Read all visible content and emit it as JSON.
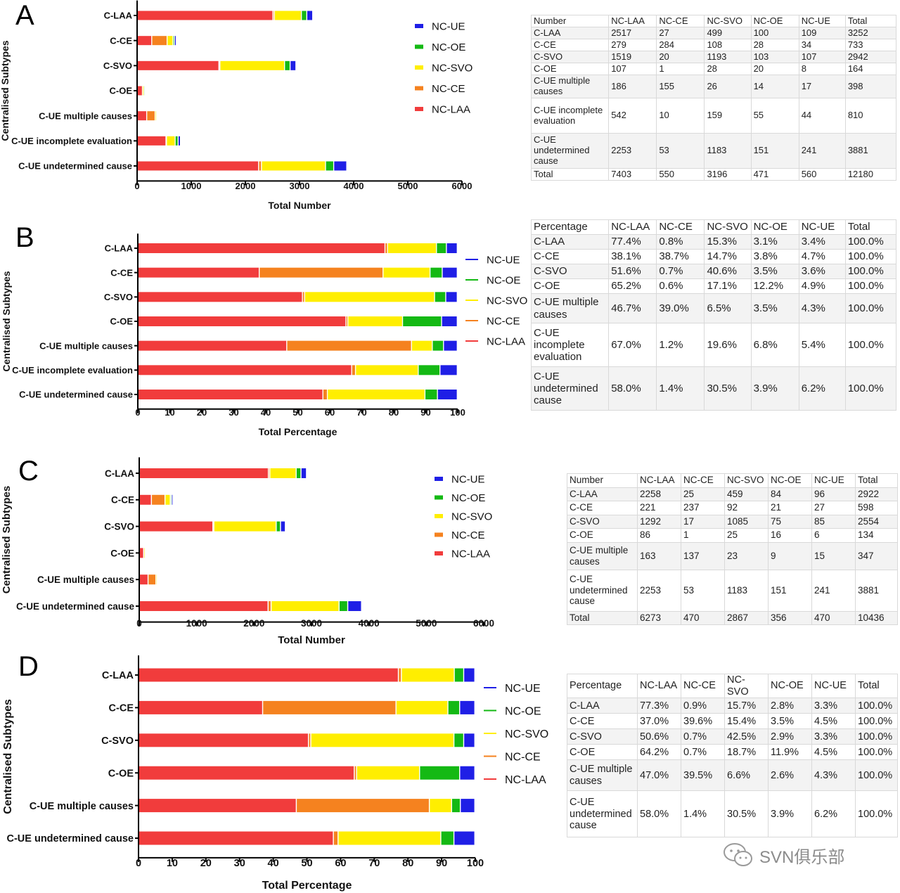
{
  "colors": {
    "NC-LAA": "#f13c3c",
    "NC-CE": "#f5821f",
    "NC-SVO": "#ffee00",
    "NC-OE": "#14b914",
    "NC-UE": "#1f1fe6"
  },
  "panels": [
    {
      "letter": "A",
      "chart_data": {
        "type": "bar",
        "orientation": "horizontal",
        "stacked": true,
        "categories": [
          "C-LAA",
          "C-CE",
          "C-SVO",
          "C-OE",
          "C-UE multiple causes",
          "C-UE incomplete evaluation",
          "C-UE undetermined cause"
        ],
        "series": [
          {
            "name": "NC-LAA",
            "values": [
              2517,
              279,
              1519,
              107,
              186,
              542,
              2253
            ]
          },
          {
            "name": "NC-CE",
            "values": [
              27,
              284,
              20,
              1,
              155,
              10,
              53
            ]
          },
          {
            "name": "NC-SVO",
            "values": [
              499,
              108,
              1193,
              28,
              26,
              159,
              1183
            ]
          },
          {
            "name": "NC-OE",
            "values": [
              100,
              28,
              103,
              20,
              14,
              55,
              151
            ]
          },
          {
            "name": "NC-UE",
            "values": [
              109,
              34,
              107,
              8,
              17,
              44,
              241
            ]
          }
        ],
        "xlabel": "Total Number",
        "ylabel": "Centralised  Subtypes",
        "xlim": [
          0,
          6000
        ],
        "xticks": [
          "0",
          "1000",
          "2000",
          "3000",
          "4000",
          "5000",
          "6000"
        ],
        "legend": [
          "NC-UE",
          "NC-OE",
          "NC-SVO",
          "NC-CE",
          "NC-LAA"
        ]
      },
      "table": {
        "rows": [
          [
            "Number",
            "NC-LAA",
            "NC-CE",
            "NC-SVO",
            "NC-OE",
            "NC-UE",
            "Total"
          ],
          [
            "C-LAA",
            "2517",
            "27",
            "499",
            "100",
            "109",
            "3252"
          ],
          [
            "C-CE",
            "279",
            "284",
            "108",
            "28",
            "34",
            "733"
          ],
          [
            "C-SVO",
            "1519",
            "20",
            "1193",
            "103",
            "107",
            "2942"
          ],
          [
            "C-OE",
            "107",
            "1",
            "28",
            "20",
            "8",
            "164"
          ],
          [
            "C-UE multiple causes",
            "186",
            "155",
            "26",
            "14",
            "17",
            "398"
          ],
          [
            "C-UE incomplete evaluation",
            "542",
            "10",
            "159",
            "55",
            "44",
            "810"
          ],
          [
            "C-UE undetermined cause",
            "2253",
            "53",
            "1183",
            "151",
            "241",
            "3881"
          ],
          [
            "Total",
            "7403",
            "550",
            "3196",
            "471",
            "560",
            "12180"
          ]
        ]
      }
    },
    {
      "letter": "B",
      "chart_data": {
        "type": "bar",
        "orientation": "horizontal",
        "stacked": true,
        "categories": [
          "C-LAA",
          "C-CE",
          "C-SVO",
          "C-OE",
          "C-UE multiple causes",
          "C-UE incomplete evaluation",
          "C-UE undetermined cause"
        ],
        "series": [
          {
            "name": "NC-LAA",
            "values": [
              77.4,
              38.1,
              51.6,
              65.2,
              46.7,
              67.0,
              58.0
            ]
          },
          {
            "name": "NC-CE",
            "values": [
              0.8,
              38.7,
              0.7,
              0.6,
              39.0,
              1.2,
              1.4
            ]
          },
          {
            "name": "NC-SVO",
            "values": [
              15.3,
              14.7,
              40.6,
              17.1,
              6.5,
              19.6,
              30.5
            ]
          },
          {
            "name": "NC-OE",
            "values": [
              3.1,
              3.8,
              3.5,
              12.2,
              3.5,
              6.8,
              3.9
            ]
          },
          {
            "name": "NC-UE",
            "values": [
              3.4,
              4.7,
              3.6,
              4.9,
              4.3,
              5.4,
              6.2
            ]
          }
        ],
        "xlabel": "Total Percentage",
        "ylabel": "Centralised  Subtypes",
        "xlim": [
          0,
          100
        ],
        "xticks": [
          "0",
          "10",
          "20",
          "30",
          "40",
          "50",
          "60",
          "70",
          "80",
          "90",
          "100"
        ],
        "legend": [
          "NC-UE",
          "NC-OE",
          "NC-SVO",
          "NC-CE",
          "NC-LAA"
        ]
      },
      "table": {
        "rows": [
          [
            "Percentage",
            "NC-LAA",
            "NC-CE",
            "NC-SVO",
            "NC-OE",
            "NC-UE",
            "Total"
          ],
          [
            "C-LAA",
            "77.4%",
            "0.8%",
            "15.3%",
            "3.1%",
            "3.4%",
            "100.0%"
          ],
          [
            "C-CE",
            "38.1%",
            "38.7%",
            "14.7%",
            "3.8%",
            "4.7%",
            "100.0%"
          ],
          [
            "C-SVO",
            "51.6%",
            "0.7%",
            "40.6%",
            "3.5%",
            "3.6%",
            "100.0%"
          ],
          [
            "C-OE",
            "65.2%",
            "0.6%",
            "17.1%",
            "12.2%",
            "4.9%",
            "100.0%"
          ],
          [
            "C-UE multiple causes",
            "46.7%",
            "39.0%",
            "6.5%",
            "3.5%",
            "4.3%",
            "100.0%"
          ],
          [
            "C-UE incomplete evaluation",
            "67.0%",
            "1.2%",
            "19.6%",
            "6.8%",
            "5.4%",
            "100.0%"
          ],
          [
            "C-UE undetermined cause",
            "58.0%",
            "1.4%",
            "30.5%",
            "3.9%",
            "6.2%",
            "100.0%"
          ]
        ]
      }
    },
    {
      "letter": "C",
      "chart_data": {
        "type": "bar",
        "orientation": "horizontal",
        "stacked": true,
        "categories": [
          "C-LAA",
          "C-CE",
          "C-SVO",
          "C-OE",
          "C-UE multiple causes",
          "C-UE undetermined cause"
        ],
        "series": [
          {
            "name": "NC-LAA",
            "values": [
              2258,
              221,
              1292,
              86,
              163,
              2253
            ]
          },
          {
            "name": "NC-CE",
            "values": [
              25,
              237,
              17,
              1,
              137,
              53
            ]
          },
          {
            "name": "NC-SVO",
            "values": [
              459,
              92,
              1085,
              25,
              23,
              1183
            ]
          },
          {
            "name": "NC-OE",
            "values": [
              84,
              21,
              75,
              16,
              9,
              151
            ]
          },
          {
            "name": "NC-UE",
            "values": [
              96,
              27,
              85,
              6,
              15,
              241
            ]
          }
        ],
        "xlabel": "Total Number",
        "ylabel": "Centralised Subtypes",
        "xlim": [
          0,
          6000
        ],
        "xticks": [
          "0",
          "1000",
          "2000",
          "3000",
          "4000",
          "5000",
          "6000"
        ],
        "legend": [
          "NC-UE",
          "NC-OE",
          "NC-SVO",
          "NC-CE",
          "NC-LAA"
        ]
      },
      "table": {
        "rows": [
          [
            "Number",
            "NC-LAA",
            "NC-CE",
            "NC-SVO",
            "NC-OE",
            "NC-UE",
            "Total"
          ],
          [
            "C-LAA",
            "2258",
            "25",
            "459",
            "84",
            "96",
            "2922"
          ],
          [
            "C-CE",
            "221",
            "237",
            "92",
            "21",
            "27",
            "598"
          ],
          [
            "C-SVO",
            "1292",
            "17",
            "1085",
            "75",
            "85",
            "2554"
          ],
          [
            "C-OE",
            "86",
            "1",
            "25",
            "16",
            "6",
            "134"
          ],
          [
            "C-UE multiple causes",
            "163",
            "137",
            "23",
            "9",
            "15",
            "347"
          ],
          [
            "C-UE undetermined cause",
            "2253",
            "53",
            "1183",
            "151",
            "241",
            "3881"
          ],
          [
            "Total",
            "6273",
            "470",
            "2867",
            "356",
            "470",
            "10436"
          ]
        ]
      }
    },
    {
      "letter": "D",
      "chart_data": {
        "type": "bar",
        "orientation": "horizontal",
        "stacked": true,
        "categories": [
          "C-LAA",
          "C-CE",
          "C-SVO",
          "C-OE",
          "C-UE multiple causes",
          "C-UE undetermined cause"
        ],
        "series": [
          {
            "name": "NC-LAA",
            "values": [
              77.3,
              37.0,
              50.6,
              64.2,
              47.0,
              58.0
            ]
          },
          {
            "name": "NC-CE",
            "values": [
              0.9,
              39.6,
              0.7,
              0.7,
              39.5,
              1.4
            ]
          },
          {
            "name": "NC-SVO",
            "values": [
              15.7,
              15.4,
              42.5,
              18.7,
              6.6,
              30.5
            ]
          },
          {
            "name": "NC-OE",
            "values": [
              2.8,
              3.5,
              2.9,
              11.9,
              2.6,
              3.9
            ]
          },
          {
            "name": "NC-UE",
            "values": [
              3.3,
              4.5,
              3.3,
              4.5,
              4.3,
              6.2
            ]
          }
        ],
        "xlabel": "Total Percentage",
        "ylabel": "Centralised Subtypes",
        "xlim": [
          0,
          100
        ],
        "xticks": [
          "0",
          "10",
          "20",
          "30",
          "40",
          "50",
          "60",
          "70",
          "80",
          "90",
          "100"
        ],
        "legend": [
          "NC-UE",
          "NC-OE",
          "NC-SVO",
          "NC-CE",
          "NC-LAA"
        ]
      },
      "table": {
        "rows": [
          [
            "Percentage",
            "NC-LAA",
            "NC-CE",
            "NC-SVO",
            "NC-OE",
            "NC-UE",
            "Total"
          ],
          [
            "C-LAA",
            "77.3%",
            "0.9%",
            "15.7%",
            "2.8%",
            "3.3%",
            "100.0%"
          ],
          [
            "C-CE",
            "37.0%",
            "39.6%",
            "15.4%",
            "3.5%",
            "4.5%",
            "100.0%"
          ],
          [
            "C-SVO",
            "50.6%",
            "0.7%",
            "42.5%",
            "2.9%",
            "3.3%",
            "100.0%"
          ],
          [
            "C-OE",
            "64.2%",
            "0.7%",
            "18.7%",
            "11.9%",
            "4.5%",
            "100.0%"
          ],
          [
            "C-UE multiple causes",
            "47.0%",
            "39.5%",
            "6.6%",
            "2.6%",
            "4.3%",
            "100.0%"
          ],
          [
            "C-UE undetermined cause",
            "58.0%",
            "1.4%",
            "30.5%",
            "3.9%",
            "6.2%",
            "100.0%"
          ]
        ]
      }
    }
  ],
  "watermark": {
    "text": "SVN俱乐部",
    "icon": "wechat-icon"
  }
}
